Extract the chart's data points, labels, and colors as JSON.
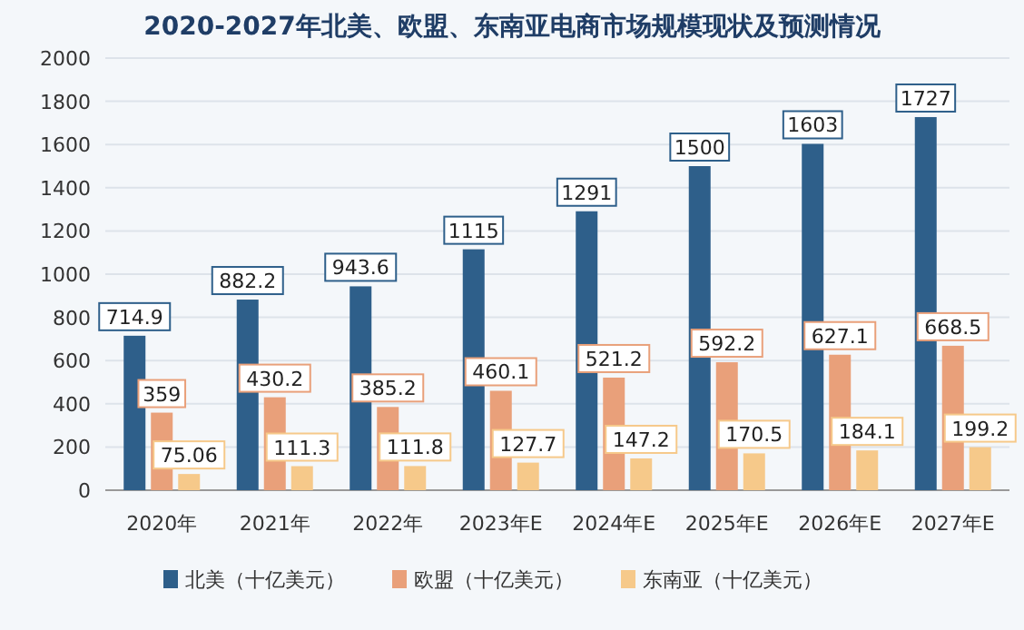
{
  "chart_data": {
    "type": "bar",
    "title": "2020-2027年北美、欧盟、东南亚电商市场规模现状及预测情况",
    "categories": [
      "2020年",
      "2021年",
      "2022年",
      "2023年E",
      "2024年E",
      "2025年E",
      "2026年E",
      "2027年E"
    ],
    "series": [
      {
        "name": "北美（十亿美元）",
        "color": "#2e5f8a",
        "values": [
          714.9,
          882.2,
          943.6,
          1115,
          1291,
          1500,
          1603,
          1727
        ]
      },
      {
        "name": "欧盟（十亿美元）",
        "color": "#e9a07a",
        "values": [
          359,
          430.2,
          385.2,
          460.1,
          521.2,
          592.2,
          627.1,
          668.5
        ]
      },
      {
        "name": "东南亚（十亿美元）",
        "color": "#f6c98a",
        "values": [
          75.06,
          111.3,
          111.8,
          127.7,
          147.2,
          170.5,
          184.1,
          199.2
        ]
      }
    ],
    "ylim": [
      0,
      2000
    ],
    "yticks": [
      0,
      200,
      400,
      600,
      800,
      1000,
      1200,
      1400,
      1600,
      1800,
      2000
    ],
    "grid": "y",
    "legend": "bottom",
    "data_labels": true
  }
}
